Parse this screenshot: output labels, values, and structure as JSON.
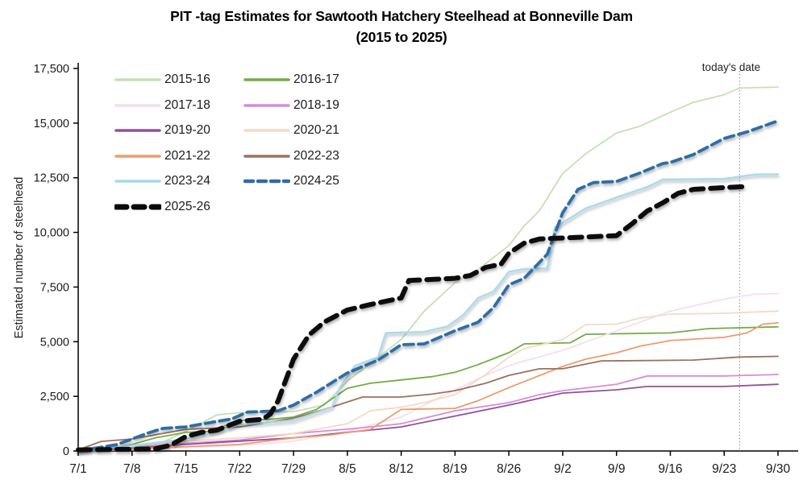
{
  "title": {
    "line1": "PIT -tag Estimates for Sawtooth Hatchery Steelhead at Bonneville Dam",
    "line2": "(2015 to 2025)"
  },
  "annotation": {
    "today_label": "today's date",
    "today_day": 86
  },
  "chart_data": {
    "type": "line",
    "title": "PIT -tag Estimates for Sawtooth Hatchery Steelhead at Bonneville Dam (2015 to 2025)",
    "xlabel": "",
    "ylabel": "Estimated number of steelhead",
    "ylim": [
      0,
      17500
    ],
    "grid": false,
    "legend_position": "upper-left, two columns",
    "x_unit": "days since 7/1",
    "x_ticks": {
      "labels": [
        "7/1",
        "7/8",
        "7/15",
        "7/22",
        "7/29",
        "8/5",
        "8/12",
        "8/19",
        "8/26",
        "9/2",
        "9/9",
        "9/16",
        "9/23",
        "9/30"
      ],
      "days": [
        0,
        7,
        14,
        21,
        28,
        35,
        42,
        49,
        56,
        63,
        70,
        77,
        84,
        91
      ]
    },
    "y_ticks": {
      "labels": [
        "0",
        "2,500",
        "5,000",
        "7,500",
        "10,000",
        "12,500",
        "15,000",
        "17,500"
      ],
      "values": [
        0,
        2500,
        5000,
        7500,
        10000,
        12500,
        15000,
        17500
      ]
    },
    "series": [
      {
        "name": "2015-16",
        "color": "#c5e0b4",
        "dash": "",
        "width": 1.8,
        "shadow": false,
        "points": [
          [
            0,
            0
          ],
          [
            7,
            150
          ],
          [
            11,
            400
          ],
          [
            14,
            900
          ],
          [
            18,
            1650
          ],
          [
            21,
            1750
          ],
          [
            28,
            1800
          ],
          [
            32,
            2100
          ],
          [
            35,
            3200
          ],
          [
            38,
            4000
          ],
          [
            42,
            5100
          ],
          [
            45,
            6400
          ],
          [
            49,
            7700
          ],
          [
            52,
            8300
          ],
          [
            56,
            9400
          ],
          [
            58,
            10300
          ],
          [
            60,
            11000
          ],
          [
            63,
            12700
          ],
          [
            66,
            13600
          ],
          [
            70,
            14550
          ],
          [
            73,
            14850
          ],
          [
            77,
            15500
          ],
          [
            80,
            15950
          ],
          [
            84,
            16300
          ],
          [
            86,
            16600
          ],
          [
            91,
            16650
          ]
        ]
      },
      {
        "name": "2016-17",
        "color": "#70ad47",
        "dash": "",
        "width": 1.8,
        "shadow": false,
        "points": [
          [
            0,
            0
          ],
          [
            4,
            120
          ],
          [
            7,
            300
          ],
          [
            10,
            600
          ],
          [
            14,
            850
          ],
          [
            17,
            900
          ],
          [
            21,
            1400
          ],
          [
            25,
            1450
          ],
          [
            28,
            1550
          ],
          [
            31,
            1900
          ],
          [
            35,
            2870
          ],
          [
            38,
            3100
          ],
          [
            42,
            3250
          ],
          [
            46,
            3400
          ],
          [
            49,
            3600
          ],
          [
            52,
            3950
          ],
          [
            56,
            4500
          ],
          [
            58,
            4900
          ],
          [
            64,
            4950
          ],
          [
            66,
            5340
          ],
          [
            77,
            5400
          ],
          [
            82,
            5600
          ],
          [
            91,
            5680
          ]
        ]
      },
      {
        "name": "2017-18",
        "color": "#f4def0",
        "dash": "",
        "width": 1.8,
        "shadow": false,
        "points": [
          [
            0,
            0
          ],
          [
            7,
            50
          ],
          [
            14,
            150
          ],
          [
            21,
            250
          ],
          [
            28,
            450
          ],
          [
            35,
            900
          ],
          [
            42,
            1550
          ],
          [
            45,
            2100
          ],
          [
            49,
            2800
          ],
          [
            52,
            3300
          ],
          [
            56,
            3900
          ],
          [
            58,
            4120
          ],
          [
            63,
            4600
          ],
          [
            70,
            5500
          ],
          [
            77,
            6400
          ],
          [
            84,
            6950
          ],
          [
            88,
            7180
          ],
          [
            91,
            7200
          ]
        ]
      },
      {
        "name": "2018-19",
        "color": "#d88bd4",
        "dash": "",
        "width": 1.8,
        "shadow": false,
        "points": [
          [
            0,
            0
          ],
          [
            7,
            150
          ],
          [
            14,
            350
          ],
          [
            21,
            500
          ],
          [
            28,
            800
          ],
          [
            35,
            1000
          ],
          [
            38,
            1100
          ],
          [
            42,
            1250
          ],
          [
            49,
            1840
          ],
          [
            56,
            2210
          ],
          [
            60,
            2580
          ],
          [
            63,
            2760
          ],
          [
            70,
            3050
          ],
          [
            74,
            3430
          ],
          [
            84,
            3430
          ],
          [
            91,
            3500
          ]
        ]
      },
      {
        "name": "2019-20",
        "color": "#8f5299",
        "dash": "",
        "width": 1.8,
        "shadow": false,
        "points": [
          [
            0,
            0
          ],
          [
            7,
            100
          ],
          [
            14,
            300
          ],
          [
            21,
            450
          ],
          [
            28,
            600
          ],
          [
            35,
            850
          ],
          [
            42,
            1100
          ],
          [
            49,
            1600
          ],
          [
            56,
            2100
          ],
          [
            63,
            2650
          ],
          [
            70,
            2800
          ],
          [
            74,
            2950
          ],
          [
            84,
            2950
          ],
          [
            91,
            3050
          ]
        ]
      },
      {
        "name": "2020-21",
        "color": "#f5d9c4",
        "dash": "",
        "width": 1.8,
        "shadow": false,
        "points": [
          [
            0,
            100
          ],
          [
            7,
            250
          ],
          [
            14,
            450
          ],
          [
            21,
            600
          ],
          [
            28,
            800
          ],
          [
            35,
            1250
          ],
          [
            38,
            1840
          ],
          [
            42,
            2000
          ],
          [
            45,
            2210
          ],
          [
            49,
            2580
          ],
          [
            53,
            3500
          ],
          [
            56,
            4300
          ],
          [
            58,
            4680
          ],
          [
            63,
            5100
          ],
          [
            66,
            5780
          ],
          [
            70,
            5800
          ],
          [
            73,
            6080
          ],
          [
            77,
            6260
          ],
          [
            84,
            6300
          ],
          [
            91,
            6400
          ]
        ]
      },
      {
        "name": "2021-22",
        "color": "#ec9c6d",
        "dash": "",
        "width": 1.8,
        "shadow": false,
        "points": [
          [
            0,
            0
          ],
          [
            7,
            100
          ],
          [
            14,
            200
          ],
          [
            21,
            300
          ],
          [
            28,
            600
          ],
          [
            33,
            740
          ],
          [
            38,
            990
          ],
          [
            42,
            1900
          ],
          [
            49,
            1950
          ],
          [
            52,
            2300
          ],
          [
            56,
            2900
          ],
          [
            63,
            3870
          ],
          [
            66,
            4200
          ],
          [
            70,
            4490
          ],
          [
            73,
            4790
          ],
          [
            77,
            5050
          ],
          [
            84,
            5200
          ],
          [
            87,
            5400
          ],
          [
            89,
            5800
          ],
          [
            91,
            5860
          ]
        ]
      },
      {
        "name": "2022-23",
        "color": "#9c7160",
        "dash": "",
        "width": 1.8,
        "shadow": false,
        "points": [
          [
            0,
            50
          ],
          [
            3,
            440
          ],
          [
            7,
            550
          ],
          [
            11,
            800
          ],
          [
            14,
            990
          ],
          [
            21,
            1100
          ],
          [
            28,
            1500
          ],
          [
            32,
            1900
          ],
          [
            37,
            2470
          ],
          [
            42,
            2470
          ],
          [
            46,
            2600
          ],
          [
            49,
            2760
          ],
          [
            53,
            3100
          ],
          [
            56,
            3460
          ],
          [
            60,
            3760
          ],
          [
            63,
            3760
          ],
          [
            68,
            4120
          ],
          [
            80,
            4160
          ],
          [
            86,
            4300
          ],
          [
            91,
            4330
          ]
        ]
      },
      {
        "name": "2023-24",
        "color": "#a6d9ef",
        "dash": "",
        "width": 2.2,
        "shadow": true,
        "points": [
          [
            0,
            0
          ],
          [
            7,
            250
          ],
          [
            14,
            550
          ],
          [
            18,
            900
          ],
          [
            21,
            1200
          ],
          [
            28,
            1400
          ],
          [
            33,
            2000
          ],
          [
            34,
            2900
          ],
          [
            36,
            3900
          ],
          [
            39,
            4300
          ],
          [
            40,
            5400
          ],
          [
            45,
            5450
          ],
          [
            48,
            5700
          ],
          [
            50,
            6200
          ],
          [
            52,
            7000
          ],
          [
            54,
            7300
          ],
          [
            56,
            8200
          ],
          [
            58,
            8330
          ],
          [
            61,
            8350
          ],
          [
            62,
            10250
          ],
          [
            63,
            10450
          ],
          [
            66,
            11100
          ],
          [
            70,
            11600
          ],
          [
            74,
            12080
          ],
          [
            76,
            12420
          ],
          [
            84,
            12450
          ],
          [
            88,
            12650
          ],
          [
            91,
            12660
          ]
        ]
      },
      {
        "name": "2024-25",
        "color": "#2e6da6",
        "dash": "12 6",
        "width": 3.8,
        "shadow": true,
        "points": [
          [
            0,
            0
          ],
          [
            5,
            290
          ],
          [
            7,
            550
          ],
          [
            9,
            810
          ],
          [
            11,
            1030
          ],
          [
            14,
            1100
          ],
          [
            17,
            1290
          ],
          [
            20,
            1470
          ],
          [
            22,
            1780
          ],
          [
            26,
            1840
          ],
          [
            28,
            2100
          ],
          [
            31,
            2690
          ],
          [
            35,
            3570
          ],
          [
            39,
            4160
          ],
          [
            42,
            4860
          ],
          [
            45,
            4900
          ],
          [
            49,
            5500
          ],
          [
            52,
            5890
          ],
          [
            54,
            6560
          ],
          [
            56,
            7600
          ],
          [
            58,
            7900
          ],
          [
            61,
            9000
          ],
          [
            63,
            10900
          ],
          [
            65,
            11970
          ],
          [
            67,
            12280
          ],
          [
            70,
            12330
          ],
          [
            73,
            12710
          ],
          [
            76,
            13150
          ],
          [
            77,
            13200
          ],
          [
            80,
            13560
          ],
          [
            84,
            14300
          ],
          [
            87,
            14600
          ],
          [
            91,
            15100
          ]
        ]
      },
      {
        "name": "2025-26",
        "color": "#0a0a0a",
        "dash": "15 9",
        "width": 6,
        "shadow": true,
        "points": [
          [
            0,
            50
          ],
          [
            7,
            80
          ],
          [
            10,
            100
          ],
          [
            12,
            260
          ],
          [
            14,
            660
          ],
          [
            16,
            850
          ],
          [
            18,
            950
          ],
          [
            21,
            1360
          ],
          [
            24,
            1450
          ],
          [
            25,
            1700
          ],
          [
            26,
            2300
          ],
          [
            28,
            4200
          ],
          [
            30,
            5300
          ],
          [
            32,
            5900
          ],
          [
            35,
            6450
          ],
          [
            38,
            6700
          ],
          [
            42,
            7000
          ],
          [
            43,
            7800
          ],
          [
            49,
            7900
          ],
          [
            51,
            8030
          ],
          [
            53,
            8400
          ],
          [
            55,
            8550
          ],
          [
            56,
            9050
          ],
          [
            58,
            9510
          ],
          [
            60,
            9700
          ],
          [
            70,
            9850
          ],
          [
            72,
            10390
          ],
          [
            74,
            10980
          ],
          [
            76,
            11350
          ],
          [
            78,
            11790
          ],
          [
            80,
            11970
          ],
          [
            84,
            12050
          ],
          [
            87,
            12100
          ]
        ]
      }
    ],
    "legend_order": [
      "2015-16",
      "2016-17",
      "2017-18",
      "2018-19",
      "2019-20",
      "2020-21",
      "2021-22",
      "2022-23",
      "2023-24",
      "2024-25",
      "2025-26"
    ],
    "today_line": {
      "day": 86,
      "color": "#888888"
    }
  }
}
